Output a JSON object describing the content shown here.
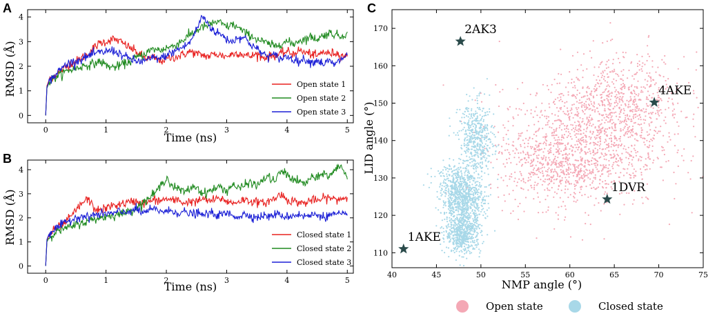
{
  "figure": {
    "panel_labels": [
      "A",
      "B",
      "C"
    ]
  },
  "chart_data": [
    {
      "id": "A",
      "type": "line",
      "xlabel": "Time (ns)",
      "ylabel": "RMSD (Å)",
      "xlim": [
        -0.3,
        5.1
      ],
      "ylim": [
        -0.3,
        4.3
      ],
      "xticks": [
        0,
        1,
        2,
        3,
        4,
        5
      ],
      "yticks": [
        0,
        1,
        2,
        3,
        4
      ],
      "legend": "lower-right",
      "series": [
        {
          "name": "Open state 1",
          "color": "#e8201f",
          "x": [
            0,
            0.02,
            0.05,
            0.1,
            0.2,
            0.3,
            0.4,
            0.5,
            0.6,
            0.7,
            0.8,
            0.9,
            1.0,
            1.1,
            1.2,
            1.3,
            1.4,
            1.5,
            1.6,
            1.7,
            1.8,
            1.9,
            2.0,
            2.1,
            2.2,
            2.3,
            2.4,
            2.5,
            2.6,
            2.7,
            2.8,
            2.9,
            3.0,
            3.1,
            3.2,
            3.3,
            3.4,
            3.5,
            3.6,
            3.7,
            3.8,
            3.9,
            4.0,
            4.1,
            4.2,
            4.3,
            4.4,
            4.5,
            4.6,
            4.7,
            4.8,
            4.9,
            5.0
          ],
          "y": [
            0,
            1.2,
            1.4,
            1.55,
            1.7,
            1.9,
            2.1,
            2.2,
            2.35,
            2.5,
            2.75,
            2.95,
            3.0,
            3.1,
            3.05,
            2.9,
            2.75,
            2.6,
            2.4,
            2.3,
            2.35,
            2.2,
            2.3,
            2.35,
            2.4,
            2.5,
            2.6,
            2.5,
            2.45,
            2.4,
            2.5,
            2.45,
            2.4,
            2.5,
            2.55,
            2.45,
            2.4,
            2.5,
            2.35,
            2.4,
            2.45,
            2.5,
            2.6,
            2.5,
            2.65,
            2.55,
            2.5,
            2.4,
            2.6,
            2.5,
            2.55,
            2.45,
            2.4
          ]
        },
        {
          "name": "Open state 2",
          "color": "#1f8a1f",
          "x": [
            0,
            0.02,
            0.05,
            0.1,
            0.2,
            0.3,
            0.4,
            0.5,
            0.6,
            0.7,
            0.8,
            0.9,
            1.0,
            1.1,
            1.2,
            1.3,
            1.4,
            1.5,
            1.6,
            1.7,
            1.8,
            1.9,
            2.0,
            2.1,
            2.2,
            2.3,
            2.4,
            2.5,
            2.6,
            2.7,
            2.8,
            2.9,
            3.0,
            3.1,
            3.2,
            3.3,
            3.4,
            3.5,
            3.6,
            3.7,
            3.8,
            3.9,
            4.0,
            4.1,
            4.2,
            4.3,
            4.4,
            4.5,
            4.6,
            4.7,
            4.8,
            4.9,
            5.0
          ],
          "y": [
            0,
            1.1,
            1.3,
            1.45,
            1.6,
            1.75,
            1.85,
            1.9,
            2.0,
            2.05,
            2.1,
            2.2,
            2.05,
            1.95,
            2.0,
            2.1,
            2.2,
            2.35,
            2.45,
            2.6,
            2.7,
            2.65,
            2.75,
            2.8,
            2.95,
            3.1,
            3.3,
            3.45,
            3.6,
            3.65,
            3.8,
            3.75,
            3.6,
            3.7,
            3.55,
            3.35,
            3.25,
            3.1,
            3.0,
            2.9,
            2.8,
            2.95,
            3.0,
            2.9,
            3.05,
            3.1,
            3.2,
            3.1,
            3.25,
            3.35,
            3.3,
            3.2,
            3.4
          ]
        },
        {
          "name": "Open state 3",
          "color": "#1b1fd6",
          "x": [
            0,
            0.02,
            0.05,
            0.1,
            0.2,
            0.3,
            0.4,
            0.5,
            0.6,
            0.7,
            0.8,
            0.9,
            1.0,
            1.1,
            1.2,
            1.3,
            1.4,
            1.5,
            1.6,
            1.7,
            1.8,
            1.9,
            2.0,
            2.1,
            2.2,
            2.3,
            2.4,
            2.5,
            2.6,
            2.7,
            2.8,
            2.9,
            3.0,
            3.1,
            3.2,
            3.3,
            3.4,
            3.5,
            3.6,
            3.7,
            3.8,
            3.9,
            4.0,
            4.1,
            4.2,
            4.3,
            4.4,
            4.5,
            4.6,
            4.7,
            4.8,
            4.9,
            5.0
          ],
          "y": [
            0,
            1.15,
            1.35,
            1.5,
            1.75,
            2.0,
            2.15,
            2.2,
            2.3,
            2.4,
            2.5,
            2.55,
            2.6,
            2.65,
            2.55,
            2.4,
            2.3,
            2.2,
            2.2,
            2.25,
            2.35,
            2.3,
            2.45,
            2.55,
            2.7,
            2.8,
            3.0,
            3.5,
            4.05,
            3.7,
            3.4,
            3.3,
            3.1,
            3.0,
            3.2,
            3.15,
            2.9,
            2.7,
            2.5,
            2.4,
            2.45,
            2.3,
            2.4,
            2.3,
            2.2,
            2.3,
            2.15,
            2.25,
            2.1,
            2.2,
            2.05,
            2.3,
            2.45
          ]
        }
      ]
    },
    {
      "id": "B",
      "type": "line",
      "xlabel": "Time (ns)",
      "ylabel": "RMSD (Å)",
      "xlim": [
        -0.3,
        5.1
      ],
      "ylim": [
        -0.3,
        4.4
      ],
      "xticks": [
        0,
        1,
        2,
        3,
        4,
        5
      ],
      "yticks": [
        0,
        1,
        2,
        3,
        4
      ],
      "legend": "lower-right",
      "series": [
        {
          "name": "Closed state 1",
          "color": "#e8201f",
          "x": [
            0,
            0.02,
            0.05,
            0.1,
            0.2,
            0.3,
            0.4,
            0.5,
            0.6,
            0.7,
            0.8,
            0.9,
            1.0,
            1.1,
            1.2,
            1.3,
            1.4,
            1.5,
            1.6,
            1.7,
            1.8,
            1.9,
            2.0,
            2.1,
            2.2,
            2.3,
            2.4,
            2.5,
            2.6,
            2.7,
            2.8,
            2.9,
            3.0,
            3.1,
            3.2,
            3.3,
            3.4,
            3.5,
            3.6,
            3.7,
            3.8,
            3.9,
            4.0,
            4.1,
            4.2,
            4.3,
            4.4,
            4.5,
            4.6,
            4.7,
            4.8,
            4.9,
            5.0
          ],
          "y": [
            0,
            1.05,
            1.25,
            1.4,
            1.6,
            1.75,
            2.0,
            2.3,
            2.6,
            2.8,
            2.4,
            2.3,
            2.4,
            2.5,
            2.55,
            2.6,
            2.65,
            2.7,
            2.6,
            2.65,
            2.75,
            2.7,
            2.8,
            2.7,
            2.75,
            2.6,
            2.7,
            2.65,
            2.8,
            2.7,
            2.75,
            2.8,
            2.7,
            2.6,
            2.7,
            2.75,
            2.7,
            2.65,
            2.6,
            2.7,
            2.8,
            3.0,
            2.75,
            2.7,
            2.65,
            2.6,
            2.75,
            2.7,
            2.8,
            2.85,
            2.75,
            2.8,
            2.85
          ]
        },
        {
          "name": "Closed state 2",
          "color": "#1f8a1f",
          "x": [
            0,
            0.02,
            0.05,
            0.1,
            0.2,
            0.3,
            0.4,
            0.5,
            0.6,
            0.7,
            0.8,
            0.9,
            1.0,
            1.1,
            1.2,
            1.3,
            1.4,
            1.5,
            1.6,
            1.7,
            1.8,
            1.9,
            2.0,
            2.1,
            2.2,
            2.3,
            2.4,
            2.5,
            2.6,
            2.7,
            2.8,
            2.9,
            3.0,
            3.1,
            3.2,
            3.3,
            3.4,
            3.5,
            3.6,
            3.7,
            3.8,
            3.9,
            4.0,
            4.1,
            4.2,
            4.3,
            4.4,
            4.5,
            4.6,
            4.7,
            4.8,
            4.9,
            5.0
          ],
          "y": [
            0,
            1.0,
            1.15,
            1.3,
            1.45,
            1.55,
            1.6,
            1.7,
            1.8,
            1.85,
            1.95,
            2.0,
            2.05,
            2.1,
            2.15,
            2.2,
            2.3,
            2.4,
            2.6,
            2.8,
            3.0,
            3.3,
            3.7,
            3.3,
            3.2,
            3.05,
            3.25,
            3.3,
            3.0,
            3.1,
            3.2,
            3.3,
            3.1,
            3.4,
            3.2,
            3.35,
            3.5,
            3.3,
            3.6,
            3.7,
            3.5,
            3.95,
            3.8,
            3.6,
            3.5,
            3.4,
            3.7,
            3.6,
            3.9,
            3.7,
            4.0,
            4.2,
            3.6
          ]
        },
        {
          "name": "Closed state 3",
          "color": "#1b1fd6",
          "x": [
            0,
            0.02,
            0.05,
            0.1,
            0.2,
            0.3,
            0.4,
            0.5,
            0.6,
            0.7,
            0.8,
            0.9,
            1.0,
            1.1,
            1.2,
            1.3,
            1.4,
            1.5,
            1.6,
            1.7,
            1.8,
            1.9,
            2.0,
            2.1,
            2.2,
            2.3,
            2.4,
            2.5,
            2.6,
            2.7,
            2.8,
            2.9,
            3.0,
            3.1,
            3.2,
            3.3,
            3.4,
            3.5,
            3.6,
            3.7,
            3.8,
            3.9,
            4.0,
            4.1,
            4.2,
            4.3,
            4.4,
            4.5,
            4.6,
            4.7,
            4.8,
            4.9,
            5.0
          ],
          "y": [
            0,
            1.1,
            1.3,
            1.45,
            1.6,
            1.75,
            1.9,
            2.0,
            2.1,
            2.0,
            2.15,
            2.1,
            2.2,
            2.15,
            2.25,
            2.2,
            2.3,
            2.35,
            2.2,
            2.3,
            2.35,
            2.3,
            2.25,
            2.3,
            2.2,
            2.25,
            2.15,
            2.2,
            2.1,
            2.2,
            2.15,
            2.1,
            2.2,
            2.1,
            2.05,
            2.15,
            2.1,
            2.0,
            2.1,
            2.05,
            2.15,
            2.1,
            2.05,
            2.1,
            2.15,
            2.05,
            2.1,
            2.15,
            2.05,
            2.1,
            2.15,
            2.1,
            2.1
          ]
        }
      ]
    },
    {
      "id": "C",
      "type": "scatter",
      "xlabel": "NMP angle (°)",
      "ylabel": "LID angle (°)",
      "xlim": [
        40,
        75
      ],
      "ylim": [
        106,
        175
      ],
      "xticks": [
        40,
        45,
        50,
        55,
        60,
        65,
        70,
        75
      ],
      "yticks": [
        110,
        120,
        130,
        140,
        150,
        160,
        170
      ],
      "legend": "bottom-center",
      "series": [
        {
          "name": "Open state",
          "color": "#f4a8b5",
          "clusters": [
            {
              "center": [
                61,
                138
              ],
              "spread": [
                4.5,
                8
              ],
              "count": 1100
            },
            {
              "center": [
                66,
                150
              ],
              "spread": [
                3.5,
                6.5
              ],
              "count": 650
            },
            {
              "center": [
                58,
                132
              ],
              "spread": [
                2.5,
                4
              ],
              "count": 250
            }
          ]
        },
        {
          "name": "Closed state",
          "color": "#a8d8e8",
          "clusters": [
            {
              "center": [
                48,
                124
              ],
              "spread": [
                1.2,
                3
              ],
              "count": 700
            },
            {
              "center": [
                48,
                115
              ],
              "spread": [
                1.0,
                2.5
              ],
              "count": 550
            },
            {
              "center": [
                49.5,
                140
              ],
              "spread": [
                1.0,
                5
              ],
              "count": 500
            },
            {
              "center": [
                47,
                130
              ],
              "spread": [
                1.1,
                2
              ],
              "count": 180
            }
          ]
        }
      ],
      "annotations": [
        {
          "label": "2AK3",
          "x": 47.7,
          "y": 166.5,
          "color": "#2a4a4a"
        },
        {
          "label": "4AKE",
          "x": 69.5,
          "y": 150.2,
          "color": "#2a4a4a"
        },
        {
          "label": "1DVR",
          "x": 64.2,
          "y": 124.3,
          "color": "#2a4a4a"
        },
        {
          "label": "1AKE",
          "x": 41.3,
          "y": 111.0,
          "color": "#2a4a4a"
        }
      ]
    }
  ]
}
